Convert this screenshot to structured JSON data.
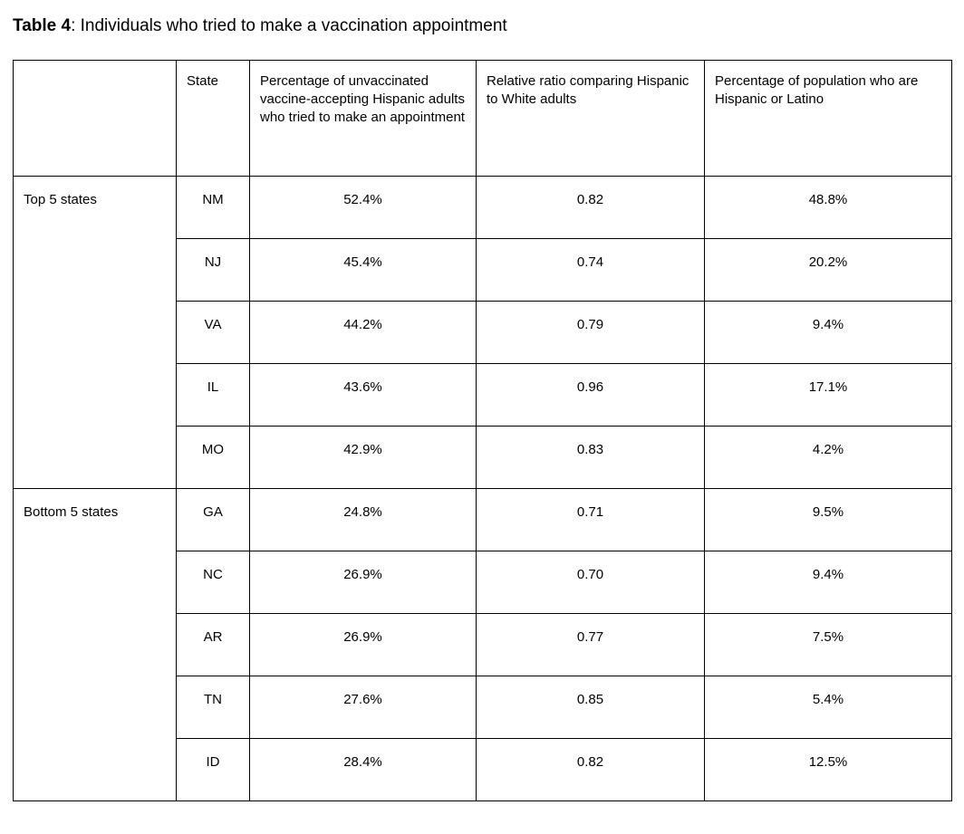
{
  "caption": {
    "label": "Table 4",
    "text": ": Individuals who tried to make a vaccination appointment"
  },
  "table": {
    "headers": [
      "",
      "State",
      "Percentage of unvaccinated vaccine-accepting Hispanic adults who tried to make an appointment",
      "Relative ratio comparing Hispanic to White adults",
      "Percentage of population who are Hispanic or Latino"
    ],
    "groups": [
      {
        "label": "Top 5 states",
        "rows": [
          {
            "state": "NM",
            "tried_pct": "52.4%",
            "relative_ratio": "0.82",
            "hispanic_pop_pct": "48.8%"
          },
          {
            "state": "NJ",
            "tried_pct": "45.4%",
            "relative_ratio": "0.74",
            "hispanic_pop_pct": "20.2%"
          },
          {
            "state": "VA",
            "tried_pct": "44.2%",
            "relative_ratio": "0.79",
            "hispanic_pop_pct": "9.4%"
          },
          {
            "state": "IL",
            "tried_pct": "43.6%",
            "relative_ratio": "0.96",
            "hispanic_pop_pct": "17.1%"
          },
          {
            "state": "MO",
            "tried_pct": "42.9%",
            "relative_ratio": "0.83",
            "hispanic_pop_pct": "4.2%"
          }
        ]
      },
      {
        "label": "Bottom 5 states",
        "rows": [
          {
            "state": "GA",
            "tried_pct": "24.8%",
            "relative_ratio": "0.71",
            "hispanic_pop_pct": "9.5%"
          },
          {
            "state": "NC",
            "tried_pct": "26.9%",
            "relative_ratio": "0.70",
            "hispanic_pop_pct": "9.4%"
          },
          {
            "state": "AR",
            "tried_pct": "26.9%",
            "relative_ratio": "0.77",
            "hispanic_pop_pct": "7.5%"
          },
          {
            "state": "TN",
            "tried_pct": "27.6%",
            "relative_ratio": "0.85",
            "hispanic_pop_pct": "5.4%"
          },
          {
            "state": "ID",
            "tried_pct": "28.4%",
            "relative_ratio": "0.82",
            "hispanic_pop_pct": "12.5%"
          }
        ]
      }
    ]
  },
  "colors": {
    "text": "#000000",
    "border": "#000000",
    "background": "#ffffff"
  }
}
